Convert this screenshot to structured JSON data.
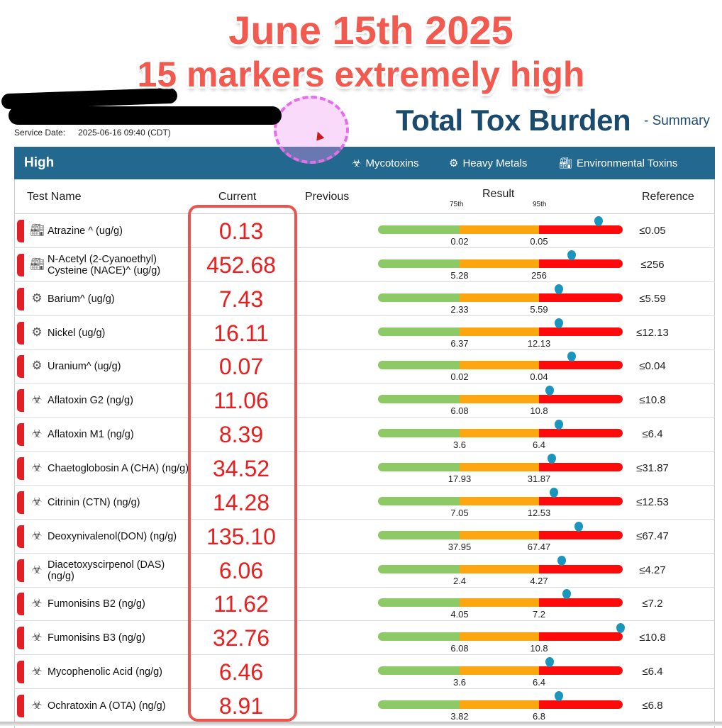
{
  "caption": {
    "line1": "June 15th 2025",
    "line2": "15 markers extremely high"
  },
  "header": {
    "service_date_label": "Service Date:",
    "service_date": "2025-06-16 09:40 (CDT)",
    "title": "Total Tox Burden",
    "subtitle": "- Summary"
  },
  "section": {
    "label": "High",
    "legend": [
      {
        "icon": "biohazard-icon",
        "label": "Mycotoxins"
      },
      {
        "icon": "gears-icon",
        "label": "Heavy Metals"
      },
      {
        "icon": "factory-icon",
        "label": "Environmental Toxins"
      }
    ]
  },
  "columns": {
    "test_name": "Test Name",
    "current": "Current",
    "previous": "Previous",
    "result": "Result",
    "p75": "75th",
    "p95": "95th",
    "reference": "Reference"
  },
  "colors": {
    "accent": "#23698f",
    "high": "#ee1c1c",
    "green": "#8dc965",
    "orange": "#fca70f",
    "red": "#ff0a0a",
    "marker": "#1a96bd"
  },
  "rows": [
    {
      "icon": "factory-icon",
      "name": "Atrazine ^ (ug/g)",
      "current": "0.13",
      "p75": "0.02",
      "p95": "0.05",
      "reference": "≤0.05",
      "marker": 0.9
    },
    {
      "icon": "factory-icon",
      "name": "N-Acetyl (2-Cyanoethyl) Cysteine (NACE)^ (ug/g)",
      "current": "452.68",
      "p75": "5.28",
      "p95": "256",
      "reference": "≤256",
      "marker": 0.79
    },
    {
      "icon": "gears-icon",
      "name": "Barium^ (ug/g)",
      "current": "7.43",
      "p75": "2.33",
      "p95": "5.59",
      "reference": "≤5.59",
      "marker": 0.74
    },
    {
      "icon": "gears-icon",
      "name": "Nickel (ug/g)",
      "current": "16.11",
      "p75": "6.37",
      "p95": "12.13",
      "reference": "≤12.13",
      "marker": 0.74
    },
    {
      "icon": "gears-icon",
      "name": "Uranium^ (ug/g)",
      "current": "0.07",
      "p75": "0.02",
      "p95": "0.04",
      "reference": "≤0.04",
      "marker": 0.79
    },
    {
      "icon": "biohazard-icon",
      "name": "Aflatoxin G2 (ng/g)",
      "current": "11.06",
      "p75": "6.08",
      "p95": "10.8",
      "reference": "≤10.8",
      "marker": 0.7
    },
    {
      "icon": "biohazard-icon",
      "name": "Aflatoxin M1 (ng/g)",
      "current": "8.39",
      "p75": "3.6",
      "p95": "6.4",
      "reference": "≤6.4",
      "marker": 0.74
    },
    {
      "icon": "biohazard-icon",
      "name": "Chaetoglobosin A (CHA) (ng/g)",
      "current": "34.52",
      "p75": "17.93",
      "p95": "31.87",
      "reference": "≤31.87",
      "marker": 0.71
    },
    {
      "icon": "biohazard-icon",
      "name": "Citrinin (CTN) (ng/g)",
      "current": "14.28",
      "p75": "7.05",
      "p95": "12.53",
      "reference": "≤12.53",
      "marker": 0.72
    },
    {
      "icon": "biohazard-icon",
      "name": "Deoxynivalenol(DON) (ng/g)",
      "current": "135.10",
      "p75": "37.95",
      "p95": "67.47",
      "reference": "≤67.47",
      "marker": 0.82
    },
    {
      "icon": "biohazard-icon",
      "name": "Diacetoxyscirpenol (DAS) (ng/g)",
      "current": "6.06",
      "p75": "2.4",
      "p95": "4.27",
      "reference": "≤4.27",
      "marker": 0.75
    },
    {
      "icon": "biohazard-icon",
      "name": "Fumonisins B2 (ng/g)",
      "current": "11.62",
      "p75": "4.05",
      "p95": "7.2",
      "reference": "≤7.2",
      "marker": 0.77
    },
    {
      "icon": "biohazard-icon",
      "name": "Fumonisins B3 (ng/g)",
      "current": "32.76",
      "p75": "6.08",
      "p95": "10.8",
      "reference": "≤10.8",
      "marker": 0.99
    },
    {
      "icon": "biohazard-icon",
      "name": "Mycophenolic Acid (ng/g)",
      "current": "6.46",
      "p75": "3.6",
      "p95": "6.4",
      "reference": "≤6.4",
      "marker": 0.7
    },
    {
      "icon": "biohazard-icon",
      "name": "Ochratoxin A (OTA) (ng/g)",
      "current": "8.91",
      "p75": "3.82",
      "p95": "6.8",
      "reference": "≤6.8",
      "marker": 0.74
    }
  ]
}
